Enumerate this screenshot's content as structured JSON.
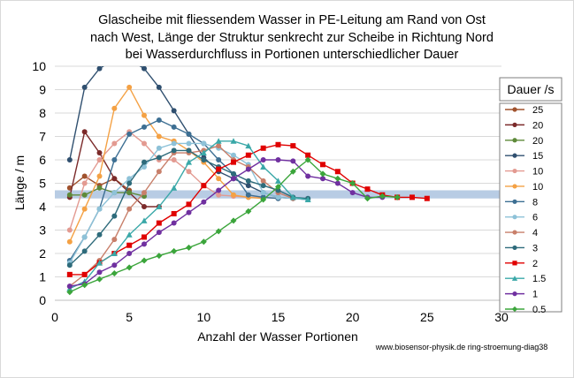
{
  "chart_data": {
    "type": "line",
    "title": [
      "Glascheibe mit fliessendem Wasser in PE-Leitung am Rand von Ost",
      "nach West, Länge der Struktur senkrecht zur Scheibe in Richtung Nord",
      "bei Wasserdurchfluss in Portionen unterschiedlicher Dauer"
    ],
    "xlabel": "Anzahl der Wasser Portionen",
    "ylabel": "Länge / m",
    "xlim": [
      0,
      30
    ],
    "ylim": [
      0,
      10
    ],
    "xticks": [
      "0",
      "5",
      "10",
      "15",
      "20",
      "25",
      "30"
    ],
    "yticks": [
      "0",
      "1",
      "2",
      "3",
      "4",
      "5",
      "6",
      "7",
      "8",
      "9",
      "10"
    ],
    "grid": "horizontal",
    "legend_title": "Dauer /s",
    "legend_position": "right",
    "credit": "www.biosensor-physik.de ring-stroemung-diag38",
    "band": {
      "y_low": 4.35,
      "y_high": 4.7,
      "color": "#b8cce4"
    },
    "series": [
      {
        "name": "25",
        "color": "#a0522d",
        "marker": "circle",
        "points": [
          [
            1,
            4.8
          ],
          [
            2,
            5.3
          ],
          [
            3,
            4.9
          ],
          [
            4,
            5.2
          ],
          [
            5,
            4.7
          ]
        ]
      },
      {
        "name": "20",
        "color": "#7b2a2a",
        "marker": "circle",
        "points": [
          [
            1,
            4.4
          ],
          [
            2,
            7.2
          ],
          [
            3,
            6.3
          ],
          [
            4,
            5.2
          ],
          [
            5,
            4.6
          ],
          [
            6,
            4.0
          ],
          [
            7,
            4.0
          ]
        ]
      },
      {
        "name": "20",
        "color": "#5e8a3a",
        "marker": "circle",
        "points": [
          [
            1,
            4.5
          ],
          [
            2,
            4.5
          ],
          [
            3,
            4.8
          ],
          [
            4,
            4.6
          ],
          [
            5,
            4.6
          ],
          [
            6,
            4.45
          ]
        ]
      },
      {
        "name": "15",
        "color": "#2f4f6f",
        "marker": "circle",
        "points": [
          [
            1,
            6.0
          ],
          [
            2,
            9.1
          ],
          [
            3,
            9.9
          ],
          [
            4,
            10.3
          ],
          [
            5,
            10.3
          ],
          [
            6,
            9.9
          ],
          [
            7,
            9.1
          ],
          [
            8,
            8.1
          ],
          [
            9,
            7.1
          ],
          [
            10,
            6.1
          ],
          [
            11,
            5.5
          ],
          [
            12,
            5.2
          ],
          [
            13,
            4.9
          ],
          [
            14,
            4.6
          ],
          [
            15,
            4.4
          ],
          [
            16,
            4.35
          ],
          [
            17,
            4.3
          ]
        ]
      },
      {
        "name": "10",
        "color": "#e39a91",
        "marker": "circle",
        "points": [
          [
            1,
            3.0
          ],
          [
            2,
            5.0
          ],
          [
            3,
            6.0
          ],
          [
            4,
            6.7
          ],
          [
            5,
            7.2
          ],
          [
            6,
            6.7
          ],
          [
            7,
            6.0
          ],
          [
            8,
            6.0
          ],
          [
            9,
            5.5
          ],
          [
            10,
            4.9
          ],
          [
            11,
            4.5
          ],
          [
            12,
            4.45
          ],
          [
            13,
            4.4
          ],
          [
            14,
            4.4
          ],
          [
            15,
            4.35
          ]
        ]
      },
      {
        "name": "10",
        "color": "#f4a144",
        "marker": "circle",
        "points": [
          [
            1,
            2.5
          ],
          [
            2,
            3.9
          ],
          [
            3,
            5.3
          ],
          [
            4,
            8.2
          ],
          [
            5,
            9.1
          ],
          [
            6,
            7.9
          ],
          [
            7,
            7.0
          ],
          [
            8,
            6.8
          ],
          [
            9,
            6.4
          ],
          [
            10,
            5.9
          ],
          [
            11,
            5.2
          ],
          [
            12,
            4.5
          ],
          [
            13,
            4.4
          ],
          [
            14,
            4.35
          ]
        ]
      },
      {
        "name": "8",
        "color": "#3d6f93",
        "marker": "circle",
        "points": [
          [
            1,
            1.7
          ],
          [
            2,
            2.7
          ],
          [
            3,
            3.9
          ],
          [
            4,
            6.0
          ],
          [
            5,
            7.1
          ],
          [
            6,
            7.4
          ],
          [
            7,
            7.7
          ],
          [
            8,
            7.4
          ],
          [
            9,
            7.1
          ],
          [
            10,
            6.7
          ],
          [
            11,
            6.0
          ],
          [
            12,
            5.4
          ],
          [
            13,
            4.5
          ],
          [
            14,
            4.4
          ],
          [
            15,
            4.35
          ]
        ]
      },
      {
        "name": "6",
        "color": "#8ec2d8",
        "marker": "circle",
        "points": [
          [
            1,
            1.6
          ],
          [
            2,
            2.7
          ],
          [
            3,
            3.9
          ],
          [
            4,
            4.6
          ],
          [
            5,
            5.2
          ],
          [
            6,
            5.7
          ],
          [
            7,
            6.5
          ],
          [
            8,
            6.7
          ],
          [
            9,
            6.7
          ],
          [
            10,
            6.7
          ],
          [
            11,
            6.5
          ],
          [
            12,
            6.2
          ],
          [
            13,
            5.8
          ],
          [
            14,
            4.6
          ],
          [
            15,
            4.4
          ],
          [
            16,
            4.35
          ],
          [
            17,
            4.3
          ]
        ]
      },
      {
        "name": "4",
        "color": "#c87f6a",
        "marker": "circle",
        "points": [
          [
            1,
            0.6
          ],
          [
            2,
            1.1
          ],
          [
            3,
            1.7
          ],
          [
            4,
            2.6
          ],
          [
            5,
            3.9
          ],
          [
            6,
            4.6
          ],
          [
            7,
            5.5
          ],
          [
            8,
            6.3
          ],
          [
            9,
            6.3
          ],
          [
            10,
            6.4
          ],
          [
            11,
            6.6
          ],
          [
            12,
            6.0
          ],
          [
            13,
            5.7
          ],
          [
            14,
            5.1
          ],
          [
            15,
            4.6
          ],
          [
            16,
            4.35
          ]
        ]
      },
      {
        "name": "3",
        "color": "#2e6b7b",
        "marker": "circle",
        "points": [
          [
            1,
            1.5
          ],
          [
            2,
            2.1
          ],
          [
            3,
            2.8
          ],
          [
            4,
            3.6
          ],
          [
            5,
            5.0
          ],
          [
            6,
            5.9
          ],
          [
            7,
            6.1
          ],
          [
            8,
            6.4
          ],
          [
            9,
            6.4
          ],
          [
            10,
            6.0
          ],
          [
            11,
            5.7
          ],
          [
            12,
            5.4
          ],
          [
            13,
            5.1
          ],
          [
            14,
            4.9
          ],
          [
            15,
            4.7
          ],
          [
            16,
            4.4
          ],
          [
            17,
            4.35
          ]
        ]
      },
      {
        "name": "2",
        "color": "#e00000",
        "marker": "square",
        "points": [
          [
            1,
            1.1
          ],
          [
            2,
            1.1
          ],
          [
            3,
            1.6
          ],
          [
            4,
            2.0
          ],
          [
            5,
            2.35
          ],
          [
            6,
            2.7
          ],
          [
            7,
            3.3
          ],
          [
            8,
            3.7
          ],
          [
            9,
            4.1
          ],
          [
            10,
            4.9
          ],
          [
            11,
            5.6
          ],
          [
            12,
            5.9
          ],
          [
            13,
            6.2
          ],
          [
            14,
            6.5
          ],
          [
            15,
            6.65
          ],
          [
            16,
            6.6
          ],
          [
            17,
            6.2
          ],
          [
            18,
            5.8
          ],
          [
            19,
            5.5
          ],
          [
            20,
            5.0
          ],
          [
            21,
            4.75
          ],
          [
            22,
            4.5
          ],
          [
            23,
            4.4
          ],
          [
            24,
            4.4
          ],
          [
            25,
            4.35
          ]
        ]
      },
      {
        "name": "1.5",
        "color": "#3aa8a8",
        "marker": "triangle",
        "points": [
          [
            1,
            0.5
          ],
          [
            2,
            0.8
          ],
          [
            3,
            1.6
          ],
          [
            4,
            2.0
          ],
          [
            5,
            2.8
          ],
          [
            6,
            3.4
          ],
          [
            7,
            4.0
          ],
          [
            8,
            4.8
          ],
          [
            9,
            5.9
          ],
          [
            10,
            6.3
          ],
          [
            11,
            6.8
          ],
          [
            12,
            6.8
          ],
          [
            13,
            6.6
          ],
          [
            14,
            5.7
          ],
          [
            15,
            5.1
          ],
          [
            16,
            4.4
          ],
          [
            17,
            4.3
          ]
        ]
      },
      {
        "name": "1",
        "color": "#7030a0",
        "marker": "circle",
        "points": [
          [
            1,
            0.6
          ],
          [
            2,
            0.7
          ],
          [
            3,
            1.2
          ],
          [
            4,
            1.5
          ],
          [
            5,
            2.0
          ],
          [
            6,
            2.4
          ],
          [
            7,
            2.9
          ],
          [
            8,
            3.3
          ],
          [
            9,
            3.75
          ],
          [
            10,
            4.2
          ],
          [
            11,
            4.7
          ],
          [
            12,
            5.2
          ],
          [
            13,
            5.6
          ],
          [
            14,
            6.0
          ],
          [
            15,
            6.0
          ],
          [
            16,
            5.95
          ],
          [
            17,
            5.3
          ],
          [
            18,
            5.2
          ],
          [
            19,
            5.0
          ],
          [
            20,
            4.6
          ],
          [
            21,
            4.4
          ],
          [
            22,
            4.4
          ]
        ]
      },
      {
        "name": "0.5",
        "color": "#3ba53b",
        "marker": "diamond",
        "points": [
          [
            1,
            0.35
          ],
          [
            2,
            0.65
          ],
          [
            3,
            0.9
          ],
          [
            4,
            1.15
          ],
          [
            5,
            1.4
          ],
          [
            6,
            1.7
          ],
          [
            7,
            1.9
          ],
          [
            8,
            2.1
          ],
          [
            9,
            2.25
          ],
          [
            10,
            2.5
          ],
          [
            11,
            2.95
          ],
          [
            12,
            3.4
          ],
          [
            13,
            3.8
          ],
          [
            14,
            4.3
          ],
          [
            15,
            4.85
          ],
          [
            16,
            5.5
          ],
          [
            17,
            6.0
          ],
          [
            18,
            5.4
          ],
          [
            19,
            5.2
          ],
          [
            20,
            5.0
          ],
          [
            21,
            4.35
          ],
          [
            22,
            4.45
          ],
          [
            23,
            4.4
          ]
        ]
      }
    ]
  }
}
